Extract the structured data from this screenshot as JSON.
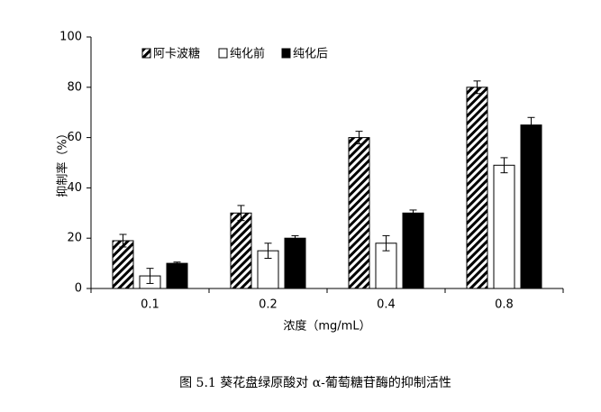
{
  "chart_data": {
    "type": "bar",
    "caption": "图 5.1  葵花盘绿原酸对 α-葡萄糖苷酶的抑制活性",
    "x_label": "浓度（mg/mL）",
    "y_label": "抑制率（%）",
    "categories": [
      "0.1",
      "0.2",
      "0.4",
      "0.8"
    ],
    "series": [
      {
        "name": "阿卡波糖",
        "color": "#000000",
        "fill": "hatch",
        "values": [
          19,
          30,
          60,
          80
        ],
        "errors": [
          2.5,
          3,
          2.5,
          2.5
        ]
      },
      {
        "name": "纯化前",
        "color": "#000000",
        "fill": "hollow",
        "values": [
          5,
          15,
          18,
          49
        ],
        "errors": [
          3,
          3,
          3,
          3
        ]
      },
      {
        "name": "纯化后",
        "color": "#000000",
        "fill": "solid",
        "values": [
          10,
          20,
          30,
          65
        ],
        "errors": [
          0.5,
          1,
          1.2,
          3
        ]
      }
    ],
    "ylim": [
      0,
      100
    ],
    "yticks": [
      0,
      20,
      40,
      60,
      80,
      100
    ],
    "legend": "top"
  }
}
